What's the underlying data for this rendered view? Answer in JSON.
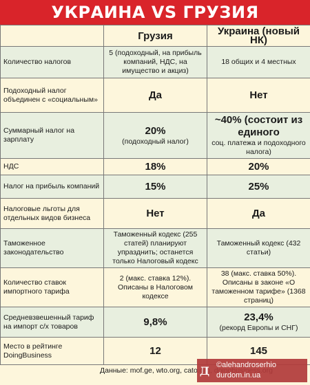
{
  "title": "УКРАИНА VS ГРУЗИЯ",
  "columns": [
    "",
    "Грузия",
    "Украина (новый НК)"
  ],
  "rows": [
    {
      "label": "Количество налогов",
      "georgia": "5 (подоходный, на прибыль компаний, НДС, на имущество и акциз)",
      "georgia_big": "",
      "ukraine": "18 общих и 4 местных",
      "ukraine_big": ""
    },
    {
      "label": "Подоходный налог объединен с «социальным»",
      "georgia": "",
      "georgia_big": "Да",
      "ukraine": "",
      "ukraine_big": "Нет"
    },
    {
      "label": "Суммарный налог на зарплату",
      "georgia": "(подоходный налог)",
      "georgia_big": "20%",
      "ukraine": "соц. платежа и подоходного налога)",
      "ukraine_big": "~40% (состоит из единого"
    },
    {
      "label": "НДС",
      "georgia": "",
      "georgia_big": "18%",
      "ukraine": "",
      "ukraine_big": "20%"
    },
    {
      "label": "Налог на прибыль компаний",
      "georgia": "",
      "georgia_big": "15%",
      "ukraine": "",
      "ukraine_big": "25%"
    },
    {
      "label": "Налоговые льготы для отдельных видов бизнеса",
      "georgia": "",
      "georgia_big": "Нет",
      "ukraine": "",
      "ukraine_big": "Да"
    },
    {
      "label": "Таможенное законодательство",
      "georgia": "Таможенный кодекс (255 статей) планируют упразднить; останется только Налоговый кодекс",
      "georgia_big": "",
      "ukraine": "Таможенный кодекс (432 статьи)",
      "ukraine_big": ""
    },
    {
      "label": "Количество ставок импортного тарифа",
      "georgia": "2 (макс. ставка 12%). Описаны в Налоговом кодексе",
      "georgia_big": "",
      "ukraine": "38 (макс. ставка 50%). Описаны в законе «О таможенном тарифе» (1368 страниц)",
      "ukraine_big": ""
    },
    {
      "label": "Средневзвешенный тариф на импорт с/х товаров",
      "georgia": "",
      "georgia_big": "9,8%",
      "ukraine": "(рекорд Европы и СНГ)",
      "ukraine_big": "23,4%"
    },
    {
      "label": "Место в рейтинге DoingBusiness",
      "georgia": "",
      "georgia_big": "12",
      "ukraine": "",
      "ukraine_big": "145"
    }
  ],
  "footer": "Данные: mof.ge, wto.org, cato.org, doingbusiness.org",
  "watermark": {
    "line1": "©alehandroserhio",
    "line2": "durdom.in.ua",
    "logo": "Д"
  }
}
